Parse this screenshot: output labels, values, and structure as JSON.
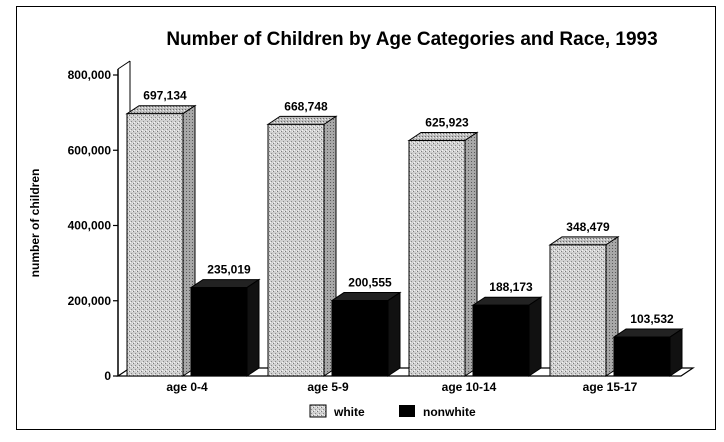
{
  "chart_data": {
    "type": "bar",
    "title": "Number of Children by Age Categories and Race, 1993",
    "xlabel": "",
    "ylabel": "number of children",
    "ylim": [
      0,
      800000
    ],
    "yticks": [
      "0",
      "200,000",
      "400,000",
      "600,000",
      "800,000"
    ],
    "ytick_values": [
      0,
      200000,
      400000,
      600000,
      800000
    ],
    "categories": [
      "age 0-4",
      "age 5-9",
      "age 10-14",
      "age 15-17"
    ],
    "series": [
      {
        "name": "white",
        "values": [
          697134,
          668748,
          625923,
          348479
        ],
        "labels": [
          "697,134",
          "668,748",
          "625,923",
          "348,479"
        ],
        "color": "#c8c8c8"
      },
      {
        "name": "nonwhite",
        "values": [
          235019,
          200555,
          188173,
          103532
        ],
        "labels": [
          "235,019",
          "200,555",
          "188,173",
          "103,532"
        ],
        "color": "#000000"
      }
    ],
    "legend_placement": "bottom",
    "grid": false
  }
}
